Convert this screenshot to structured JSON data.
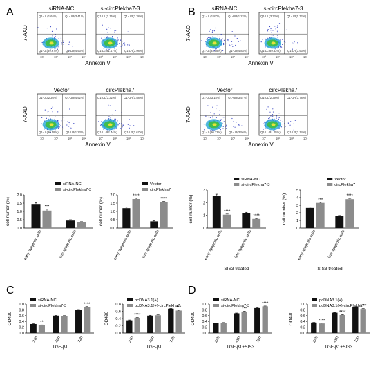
{
  "panel_letters": [
    "A",
    "B",
    "C",
    "D"
  ],
  "colors": {
    "black_bar": "#111111",
    "gray_bar": "#8c8c8c",
    "dense_core": "#3fbf3f",
    "scatter": "#3b48c4",
    "mid": "#26a8d6"
  },
  "flow_axis": {
    "ylabel": "7-AAD",
    "xlabel": "Annexin V"
  },
  "flow_panels": [
    {
      "title": "siRNA-NC",
      "quad": [
        "Q1-UL(1.64%)",
        "Q1-UR(3.41%)",
        "Q1-LL(89.97%)",
        "Q1-LR(4.93%)"
      ]
    },
    {
      "title": "si-circPlekha7-3",
      "quad": [
        "Q1-UL(1.15%)",
        "Q1-UR(3.38%)",
        "Q1-LL(91.47%)",
        "Q1-LR(3.98%)"
      ]
    },
    {
      "title": "Vector",
      "quad": [
        "Q1-UL(2.26%)",
        "Q1-UR(4.92%)",
        "Q1-LL(90.58%)",
        "Q1-LR(1.23%)"
      ]
    },
    {
      "title": "circPlekha7",
      "quad": [
        "Q1-UL(3.32%)",
        "Q1-UR(1.58%)",
        "Q1-LL(92.44%)",
        "Q1-LR(1.67%)"
      ]
    },
    {
      "title": "siRNA-NC",
      "quad": [
        "Q1-UL(1.87%)",
        "Q1-UR(1.22%)",
        "Q1-LL(93.08%)",
        "Q1-LR(4.83%)"
      ]
    },
    {
      "title": "si-circPlekha7-3",
      "quad": [
        "Q1-UL(3.33%)",
        "Q1-UR(0.72%)",
        "Q1-LL(89.53%)",
        "Q1-LR(3.93%)"
      ]
    },
    {
      "title": "Vector",
      "quad": [
        "Q1-UL(3.15%)",
        "Q1-UR(3.57%)",
        "Q1-LL(90.72%)",
        "Q1-LR(3.56%)"
      ]
    },
    {
      "title": "circPlekha7",
      "quad": [
        "Q1-UL(2.39%)",
        "Q1-UR(3.78%)",
        "Q1-LL(91.05%)",
        "Q1-LR(3.14%)"
      ]
    }
  ],
  "chart_data": [
    {
      "type": "bar",
      "ylabel": "cell numer (%)",
      "xlabel": "",
      "ylim": [
        0,
        2
      ],
      "yticks": [
        "0.0",
        "0.5",
        "1.0",
        "1.5",
        "2.0"
      ],
      "grid": false,
      "legend": "top-right",
      "categories": [
        "early apoptotic cells",
        "late apoptotic cells"
      ],
      "series": [
        {
          "name": "siRNA-NC",
          "values": [
            1.45,
            0.45
          ],
          "err": [
            0.08,
            0.05
          ]
        },
        {
          "name": "si-circPlekha7-3",
          "values": [
            1.05,
            0.35
          ],
          "err": [
            0.1,
            0.03
          ]
        }
      ],
      "sig": [
        "***",
        ""
      ]
    },
    {
      "type": "bar",
      "ylabel": "cell numer (%)",
      "xlabel": "",
      "ylim": [
        0,
        2
      ],
      "yticks": [
        "0.0",
        "0.5",
        "1.0",
        "1.5",
        "2.0"
      ],
      "grid": false,
      "legend": "top-right",
      "categories": [
        "early apoptotic cells",
        "late apoptotic cells"
      ],
      "series": [
        {
          "name": "Vector",
          "values": [
            1.2,
            0.4
          ],
          "err": [
            0.06,
            0.04
          ]
        },
        {
          "name": "circPlekha7",
          "values": [
            1.75,
            1.55
          ],
          "err": [
            0.05,
            0.05
          ]
        }
      ],
      "sig": [
        "****",
        "****"
      ]
    },
    {
      "type": "bar",
      "ylabel": "cell numer (%)",
      "xlabel": "SIS3 treated",
      "ylim": [
        0,
        3
      ],
      "yticks": [
        "0",
        "1",
        "2",
        "3"
      ],
      "grid": false,
      "legend": "top-right",
      "categories": [
        "early apoptotic cells",
        "late apoptotic cells"
      ],
      "series": [
        {
          "name": "siRNA-NC",
          "values": [
            2.55,
            1.2
          ],
          "err": [
            0.12,
            0.04
          ]
        },
        {
          "name": "si-circPlekha7-3",
          "values": [
            1.05,
            0.72
          ],
          "err": [
            0.05,
            0.04
          ]
        }
      ],
      "sig": [
        "****",
        "****"
      ]
    },
    {
      "type": "bar",
      "ylabel": "cell number (%)",
      "xlabel": "SIS3 treated",
      "ylim": [
        0,
        5
      ],
      "yticks": [
        "0",
        "1",
        "2",
        "3",
        "4",
        "5"
      ],
      "grid": false,
      "legend": "top-right",
      "categories": [
        "early apoptotic cells",
        "late apoptotic cells"
      ],
      "series": [
        {
          "name": "Vector",
          "values": [
            2.65,
            1.55
          ],
          "err": [
            0.1,
            0.1
          ]
        },
        {
          "name": "circPlekha7",
          "values": [
            3.3,
            3.8
          ],
          "err": [
            0.08,
            0.1
          ]
        }
      ],
      "sig": [
        "***",
        "****"
      ]
    },
    {
      "type": "bar",
      "ylabel": "OD490",
      "xlabel": "TGF-β1",
      "ylim": [
        0,
        1.0
      ],
      "yticks": [
        "0.0",
        "0.2",
        "0.4",
        "0.6",
        "0.8",
        "1.0"
      ],
      "grid": false,
      "legend": "top-left",
      "categories": [
        "24h",
        "48h",
        "72h"
      ],
      "series": [
        {
          "name": "siRNA-NC",
          "values": [
            0.31,
            0.6,
            0.8
          ],
          "err": [
            0.01,
            0.01,
            0.01
          ]
        },
        {
          "name": "si-circPlekha7-3",
          "values": [
            0.27,
            0.59,
            0.9
          ],
          "err": [
            0.01,
            0.01,
            0.01
          ]
        }
      ],
      "sig": [
        "**",
        "",
        "****"
      ]
    },
    {
      "type": "bar",
      "ylabel": "OD490",
      "xlabel": "TGF-β1",
      "ylim": [
        0,
        0.8
      ],
      "yticks": [
        "0.0",
        "0.2",
        "0.4",
        "0.6",
        "0.8"
      ],
      "grid": false,
      "legend": "top-left",
      "categories": [
        "24h",
        "48h",
        "72h"
      ],
      "series": [
        {
          "name": "pcDNA3.1(+)",
          "values": [
            0.35,
            0.48,
            0.67
          ],
          "err": [
            0.01,
            0.01,
            0.01
          ]
        },
        {
          "name": "pcDNA3.1(+)-circPlekha7",
          "values": [
            0.42,
            0.49,
            0.62
          ],
          "err": [
            0.01,
            0.01,
            0.01
          ]
        }
      ],
      "sig": [
        "****",
        "",
        "***"
      ]
    },
    {
      "type": "bar",
      "ylabel": "OD490",
      "xlabel": "TGF-β1+SIS3",
      "ylim": [
        0,
        1.0
      ],
      "yticks": [
        "0.0",
        "0.2",
        "0.4",
        "0.6",
        "0.8",
        "1.0"
      ],
      "grid": false,
      "legend": "top-left",
      "categories": [
        "24h",
        "48h",
        "72h"
      ],
      "series": [
        {
          "name": "siRNA-NC",
          "values": [
            0.34,
            0.68,
            0.86
          ],
          "err": [
            0.01,
            0.01,
            0.01
          ]
        },
        {
          "name": "si-circPlekha7-3",
          "values": [
            0.35,
            0.74,
            0.92
          ],
          "err": [
            0.01,
            0.01,
            0.01
          ]
        }
      ],
      "sig": [
        "",
        "***",
        "****"
      ]
    },
    {
      "type": "bar",
      "ylabel": "OD490",
      "xlabel": "TGF-β1+SIS3",
      "ylim": [
        0,
        1.0
      ],
      "yticks": [
        "0.0",
        "0.2",
        "0.4",
        "0.6",
        "0.8",
        "1.0"
      ],
      "grid": false,
      "legend": "top-left",
      "categories": [
        "24h",
        "48h",
        "72h"
      ],
      "series": [
        {
          "name": "pcDNA3.1(+)",
          "values": [
            0.36,
            0.7,
            0.9
          ],
          "err": [
            0.01,
            0.01,
            0.01
          ]
        },
        {
          "name": "pcDNA3.1(+)-circPlekha7",
          "values": [
            0.33,
            0.62,
            0.83
          ],
          "err": [
            0.01,
            0.01,
            0.01
          ]
        }
      ],
      "sig": [
        "****",
        "****",
        "****"
      ]
    }
  ]
}
